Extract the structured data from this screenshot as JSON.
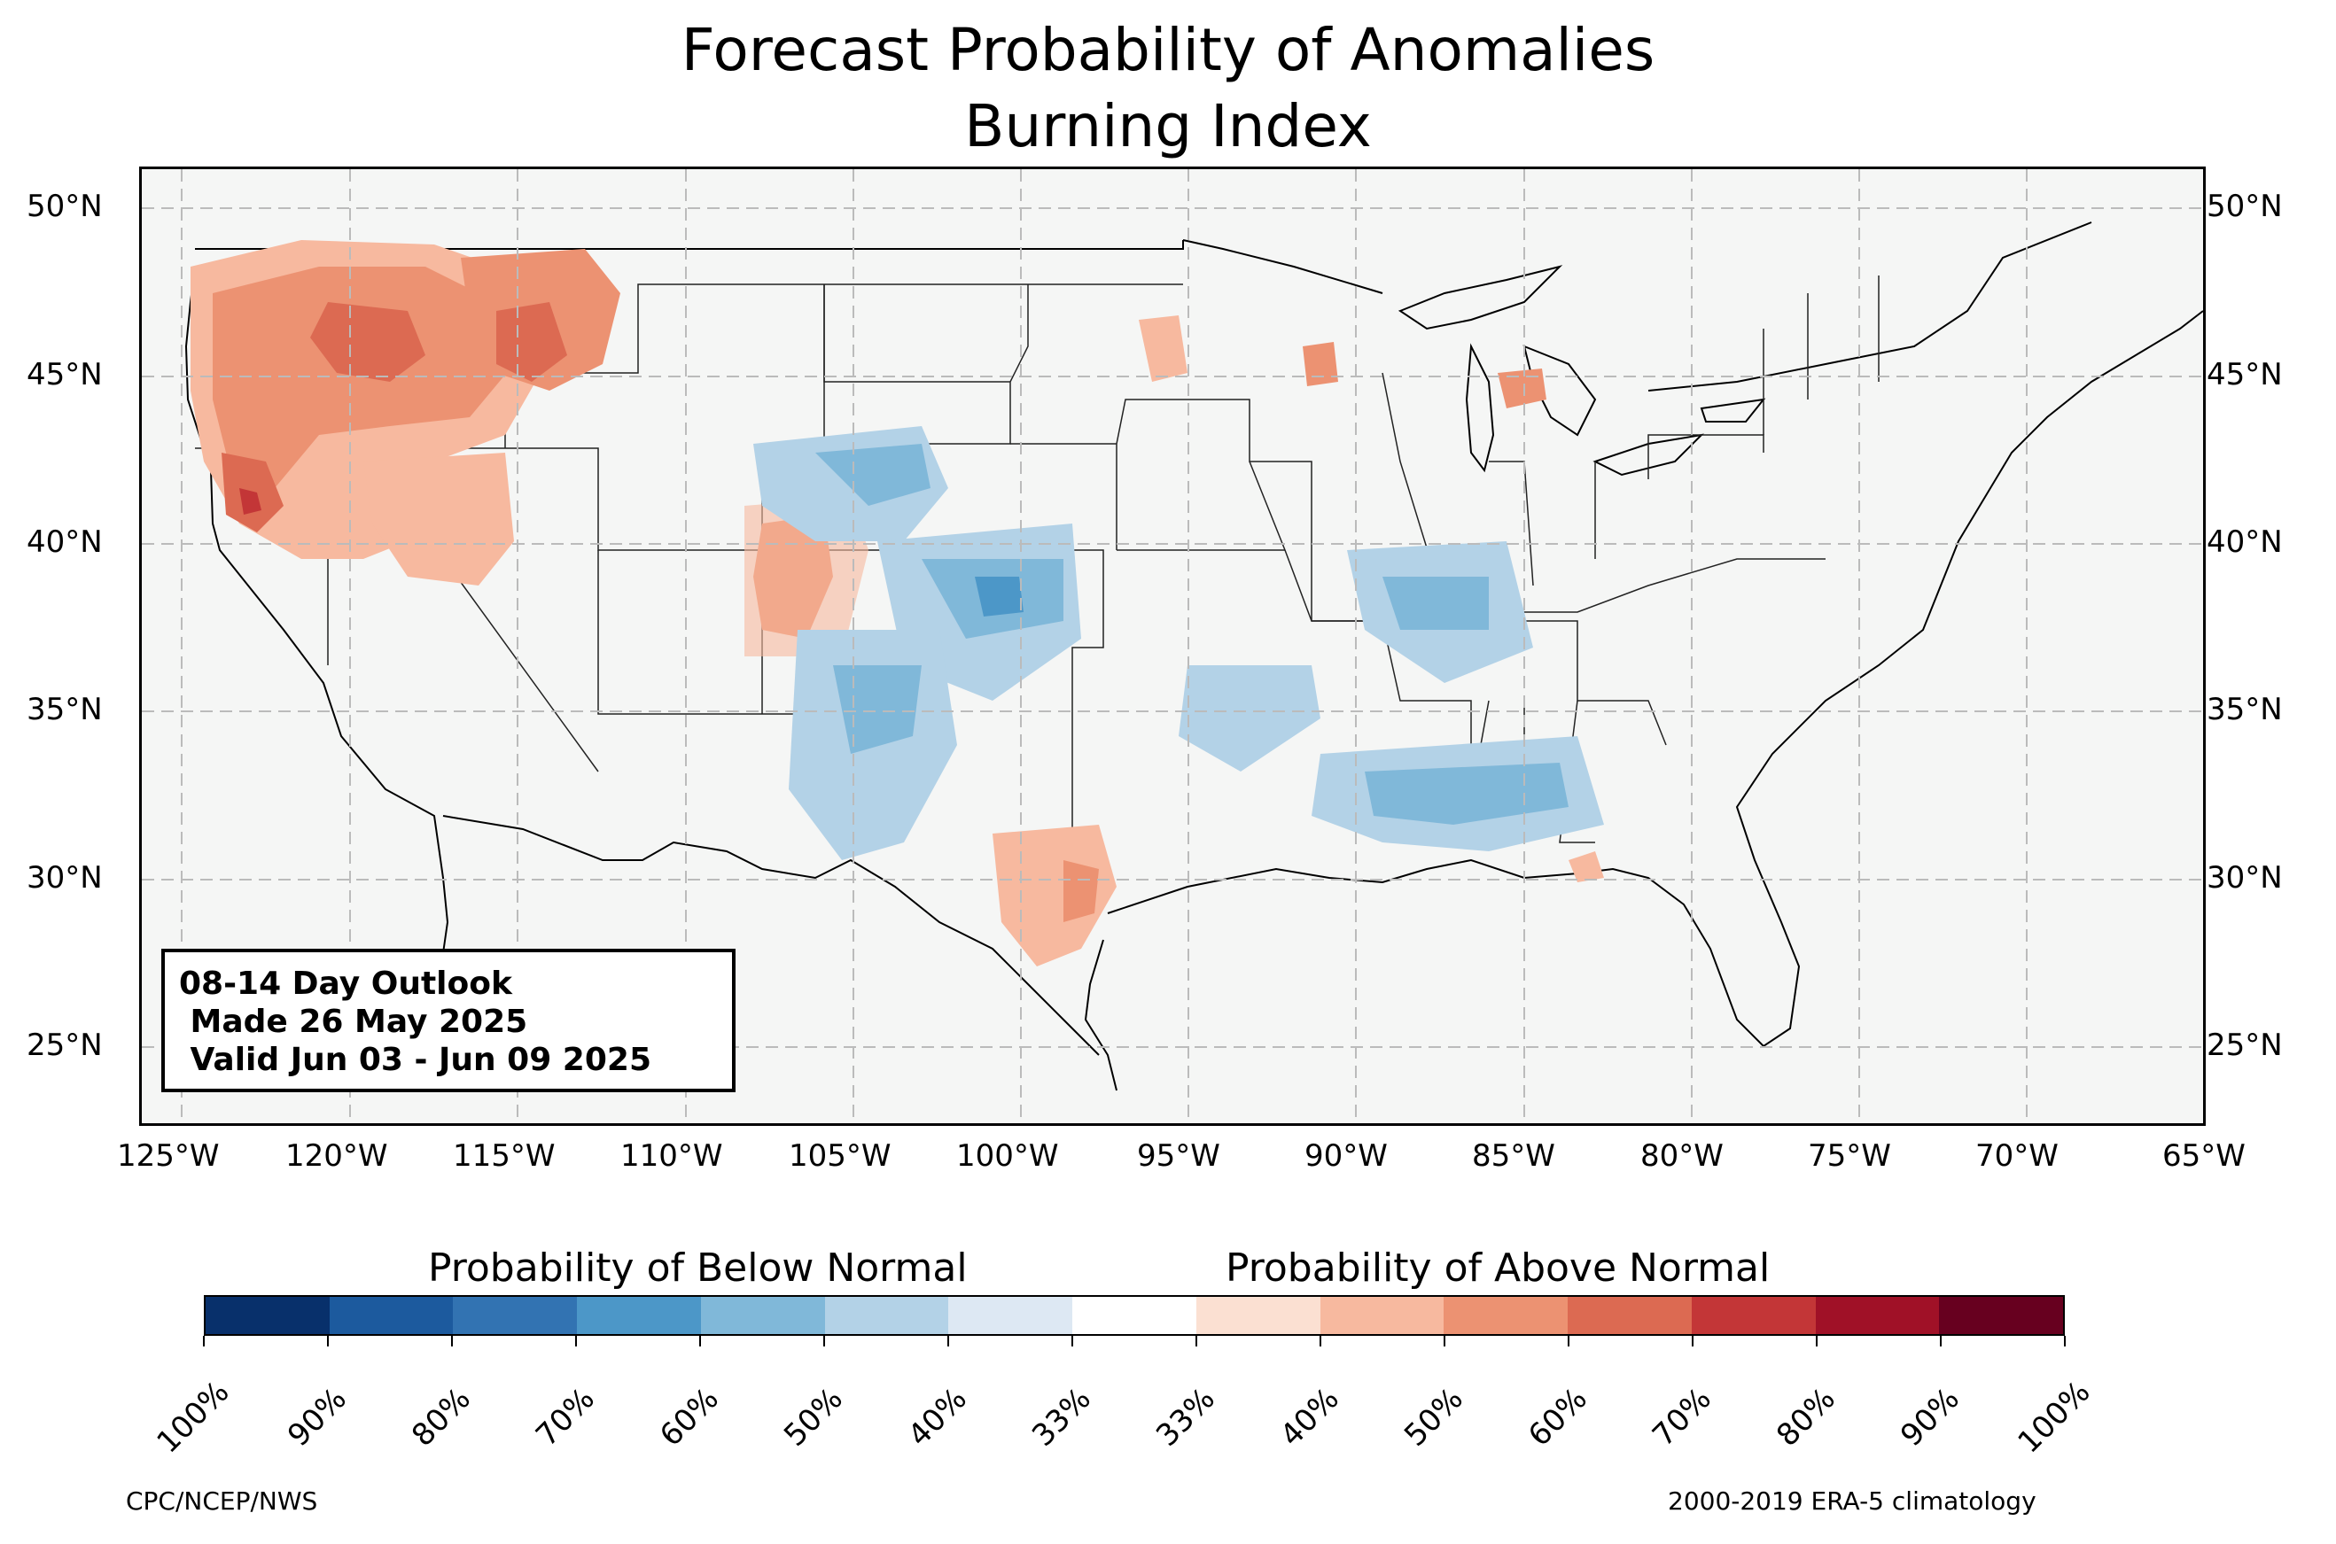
{
  "title": {
    "line1": "Forecast Probability of Anomalies",
    "line2": "Burning Index"
  },
  "map": {
    "lon_range": [
      -126.3,
      -64.9
    ],
    "lat_range": [
      22.8,
      51.2
    ],
    "lat_ticks": [
      "50°N",
      "45°N",
      "40°N",
      "35°N",
      "30°N",
      "25°N"
    ],
    "lon_ticks": [
      "125°W",
      "120°W",
      "115°W",
      "110°W",
      "105°W",
      "100°W",
      "95°W",
      "90°W",
      "85°W",
      "80°W",
      "75°W",
      "70°W",
      "65°W"
    ],
    "gridlines": "dashed",
    "land_color": "#f5f6f5",
    "above_color": "#e9856a",
    "below_color": "#8dbfde",
    "above_regions": [
      "Pacific Northwest",
      "Northern California",
      "Idaho",
      "Southwest Montana",
      "Western Colorado",
      "South Texas",
      "Eastern Wisconsin",
      "Lower Michigan"
    ],
    "below_regions": [
      "Wyoming",
      "Eastern Colorado",
      "Western Kansas",
      "New Mexico",
      "Oklahoma",
      "Mississippi",
      "Alabama",
      "Illinois",
      "Indiana",
      "Kentucky"
    ]
  },
  "outlook_box": {
    "line1": "08-14 Day Outlook",
    "line2": " Made 26 May 2025",
    "line3": " Valid Jun 03 - Jun 09 2025"
  },
  "colorbar": {
    "below_title": "Probability of Below Normal",
    "above_title": "Probability of Above Normal",
    "colors": [
      "#08306b",
      "#1c5a9e",
      "#3273b2",
      "#4c97c8",
      "#80b8d9",
      "#b3d2e7",
      "#dde8f3",
      "#ffffff",
      "#fbe0d2",
      "#f7b99f",
      "#ec9272",
      "#dc6a52",
      "#c33637",
      "#a01127",
      "#67001f"
    ],
    "tick_labels": [
      "100%",
      "90%",
      "80%",
      "70%",
      "60%",
      "50%",
      "40%",
      "33%",
      "33%",
      "40%",
      "50%",
      "60%",
      "70%",
      "80%",
      "90%",
      "100%"
    ]
  },
  "credits": {
    "left": "CPC/NCEP/NWS",
    "right": "2000-2019 ERA-5 climatology"
  }
}
